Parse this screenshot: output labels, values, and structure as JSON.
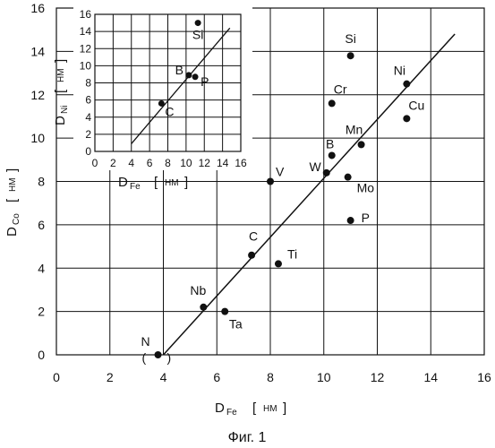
{
  "chart_data": [
    {
      "type": "scatter",
      "title": "",
      "xlim": [
        0,
        16
      ],
      "ylim": [
        0,
        16
      ],
      "xticks": [
        "0",
        "2",
        "4",
        "6",
        "8",
        "10",
        "12",
        "14",
        "16"
      ],
      "yticks": [
        "0",
        "2",
        "4",
        "6",
        "8",
        "10",
        "12",
        "14",
        "16"
      ],
      "xlabel": {
        "main": "D",
        "sub": "Fe",
        "bracket_open": "[",
        "unit": "НМ",
        "bracket_close": "]"
      },
      "ylabel": {
        "main": "D",
        "sub": "Co",
        "bracket_open": "[",
        "unit": "НМ",
        "bracket_close": "]"
      },
      "grid": true,
      "points": [
        {
          "label": "N",
          "x": 3.8,
          "y": 0.0
        },
        {
          "label": "Nb",
          "x": 5.5,
          "y": 2.2
        },
        {
          "label": "Ta",
          "x": 6.3,
          "y": 2.0
        },
        {
          "label": "C",
          "x": 7.3,
          "y": 4.6
        },
        {
          "label": "Ti",
          "x": 8.3,
          "y": 4.2
        },
        {
          "label": "V",
          "x": 8.0,
          "y": 8.0
        },
        {
          "label": "W",
          "x": 10.1,
          "y": 8.4
        },
        {
          "label": "B",
          "x": 10.3,
          "y": 9.2
        },
        {
          "label": "Mn",
          "x": 11.4,
          "y": 9.7
        },
        {
          "label": "Mo",
          "x": 10.9,
          "y": 8.2
        },
        {
          "label": "P",
          "x": 11.0,
          "y": 6.2
        },
        {
          "label": "Cr",
          "x": 10.3,
          "y": 11.6
        },
        {
          "label": "Si",
          "x": 11.0,
          "y": 13.8
        },
        {
          "label": "Ni",
          "x": 13.1,
          "y": 12.5
        },
        {
          "label": "Cu",
          "x": 13.1,
          "y": 10.9
        }
      ],
      "fit_line": {
        "x": [
          4.0,
          14.9
        ],
        "y": [
          0.0,
          14.8
        ]
      },
      "n_annotation": "( )"
    },
    {
      "type": "scatter",
      "title": "",
      "xlim": [
        0,
        16
      ],
      "ylim": [
        0,
        16
      ],
      "xticks": [
        "0",
        "2",
        "4",
        "6",
        "8",
        "10",
        "12",
        "14",
        "16"
      ],
      "yticks": [
        "0",
        "2",
        "4",
        "6",
        "8",
        "10",
        "12",
        "14",
        "16"
      ],
      "xlabel": {
        "main": "D",
        "sub": "Fe",
        "bracket_open": "[",
        "unit": "НМ",
        "bracket_close": "]"
      },
      "ylabel": {
        "main": "D",
        "sub": "Ni",
        "bracket_open": "[",
        "unit": "НМ",
        "bracket_close": "]"
      },
      "grid": true,
      "points": [
        {
          "label": "Si",
          "x": 11.3,
          "y": 15.0
        },
        {
          "label": "B",
          "x": 10.3,
          "y": 8.9
        },
        {
          "label": "P",
          "x": 11.0,
          "y": 8.7
        },
        {
          "label": "C",
          "x": 7.3,
          "y": 5.6
        }
      ],
      "fit_line": {
        "x": [
          4.0,
          14.8
        ],
        "y": [
          0.9,
          14.4
        ]
      }
    }
  ],
  "caption": "Фиг. 1"
}
